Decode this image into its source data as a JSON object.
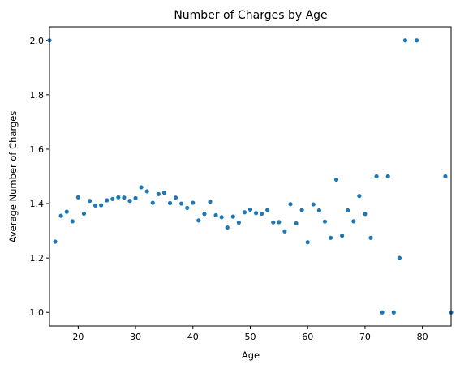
{
  "chart_data": {
    "type": "scatter",
    "title": "Number of Charges by Age",
    "xlabel": "Age",
    "ylabel": "Average Number of Charges",
    "xlim": [
      15,
      85
    ],
    "ylim": [
      0.95,
      2.05
    ],
    "xticks": [
      20,
      30,
      40,
      50,
      60,
      70,
      80
    ],
    "yticks": [
      1.0,
      1.2,
      1.4,
      1.6,
      1.8,
      2.0
    ],
    "ytick_labels": [
      "1.0",
      "1.2",
      "1.4",
      "1.6",
      "1.8",
      "2.0"
    ],
    "grid": false,
    "marker_color": "#1f77b4",
    "x": [
      15,
      16,
      17,
      18,
      19,
      20,
      21,
      22,
      23,
      24,
      25,
      26,
      27,
      28,
      29,
      30,
      31,
      32,
      33,
      34,
      35,
      36,
      37,
      38,
      39,
      40,
      41,
      42,
      43,
      44,
      45,
      46,
      47,
      48,
      49,
      50,
      51,
      52,
      53,
      54,
      55,
      56,
      57,
      58,
      59,
      60,
      61,
      62,
      63,
      64,
      65,
      66,
      67,
      68,
      69,
      70,
      71,
      72,
      73,
      74,
      75,
      76,
      77,
      79,
      84,
      85
    ],
    "y": [
      2.0,
      1.26,
      1.355,
      1.37,
      1.335,
      1.423,
      1.363,
      1.41,
      1.393,
      1.394,
      1.412,
      1.417,
      1.423,
      1.422,
      1.41,
      1.42,
      1.46,
      1.445,
      1.403,
      1.435,
      1.44,
      1.402,
      1.422,
      1.4,
      1.384,
      1.403,
      1.338,
      1.362,
      1.407,
      1.357,
      1.35,
      1.312,
      1.352,
      1.33,
      1.368,
      1.378,
      1.365,
      1.363,
      1.376,
      1.331,
      1.332,
      1.298,
      1.398,
      1.327,
      1.376,
      1.258,
      1.397,
      1.375,
      1.334,
      1.274,
      1.488,
      1.282,
      1.375,
      1.335,
      1.428,
      1.362,
      1.274,
      1.5,
      1.0,
      1.5,
      1.0,
      1.2,
      2.0,
      2.0,
      1.5,
      1.0
    ]
  }
}
